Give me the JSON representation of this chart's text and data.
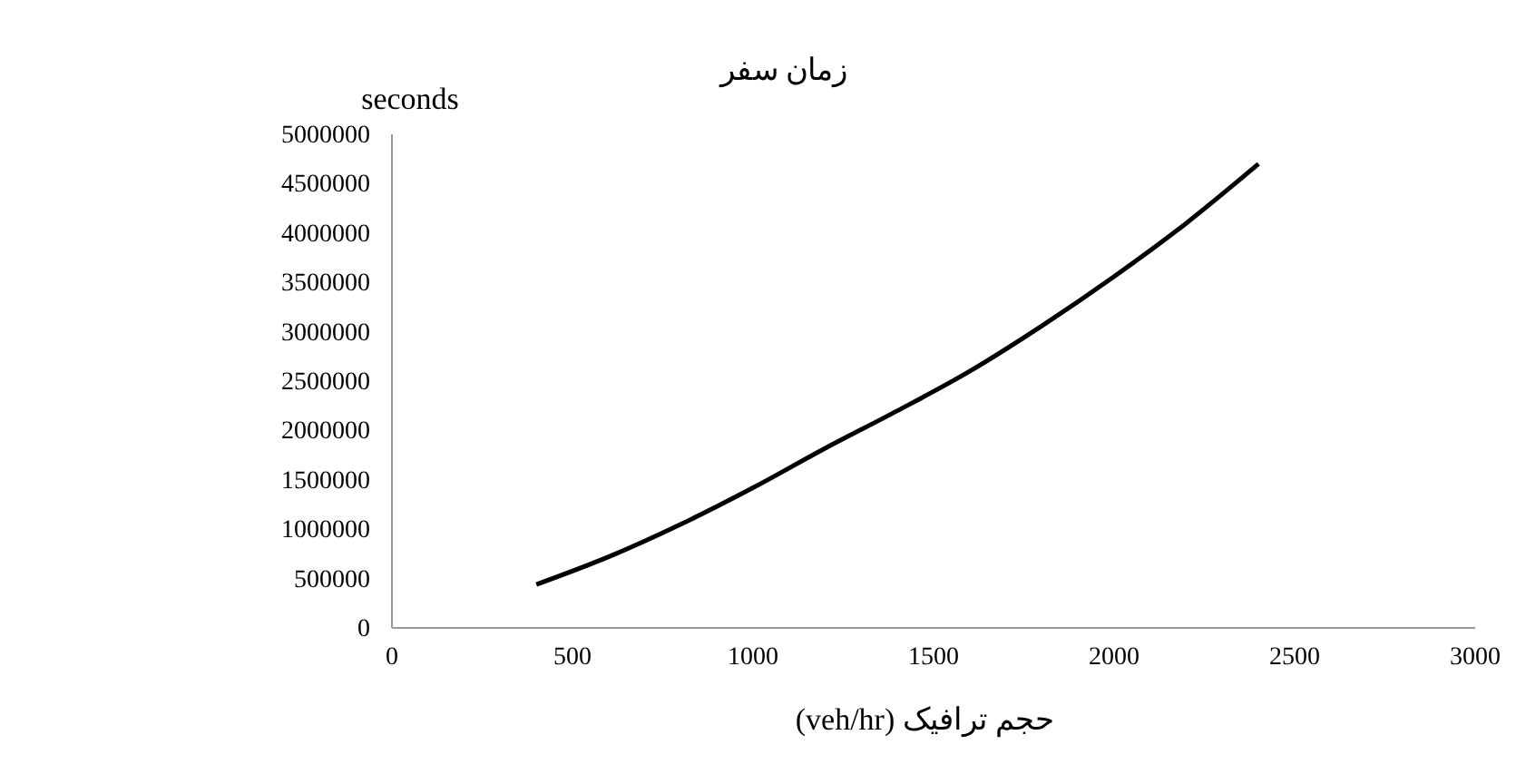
{
  "chart_data": {
    "type": "line",
    "title": "زمان سفر",
    "ylabel": "seconds",
    "xlabel": "حجم ترافیک (veh/hr)",
    "x": [
      400,
      600,
      800,
      1000,
      1200,
      1400,
      1600,
      1800,
      2000,
      2200,
      2400
    ],
    "series": [
      {
        "color": "#000000",
        "values": [
          440000,
          720000,
          1050000,
          1420000,
          1820000,
          2200000,
          2600000,
          3060000,
          3560000,
          4100000,
          4700000
        ]
      }
    ],
    "xlim": [
      0,
      3000
    ],
    "xticks": [
      0,
      500,
      1000,
      1500,
      2000,
      2500,
      3000
    ],
    "ylim": [
      0,
      5000000
    ],
    "yticks": [
      0,
      500000,
      1000000,
      1500000,
      2000000,
      2500000,
      3000000,
      3500000,
      4000000,
      4500000,
      5000000
    ],
    "grid": false,
    "marker": "none",
    "line_style": "solid"
  }
}
